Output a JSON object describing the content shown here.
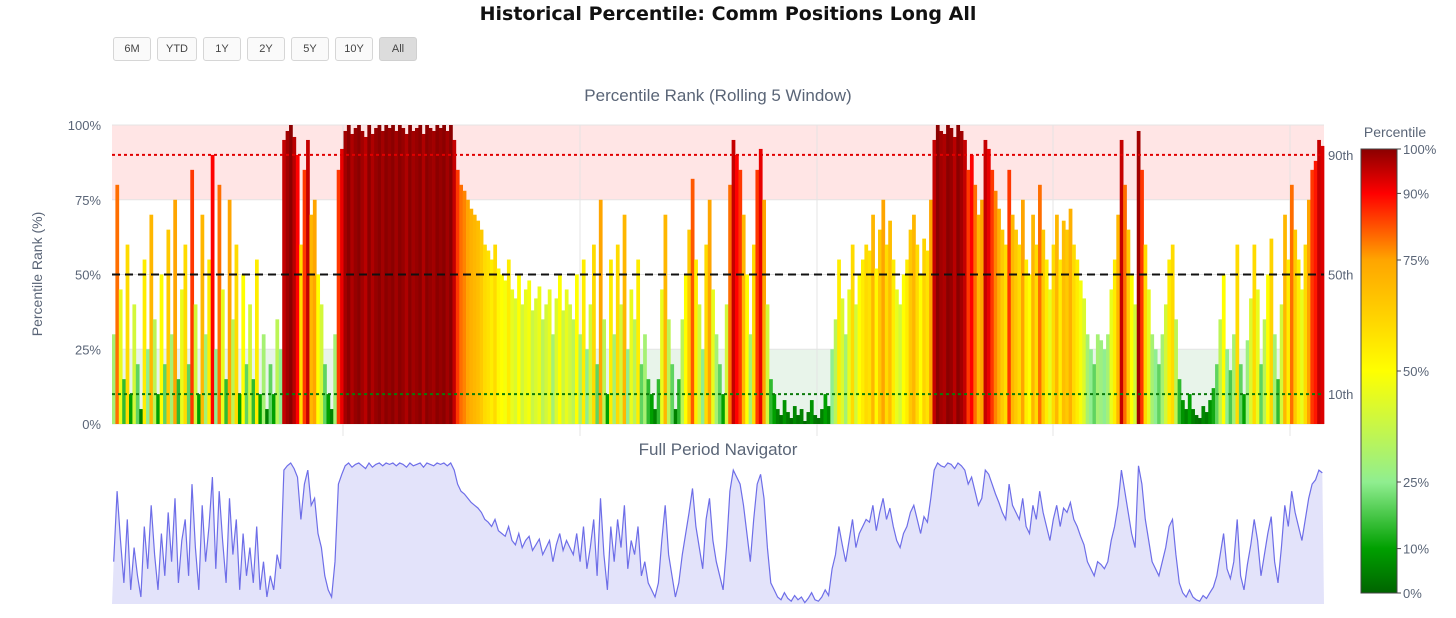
{
  "title": "Historical Percentile: Comm Positions Long All",
  "range_buttons": [
    "6M",
    "YTD",
    "1Y",
    "2Y",
    "5Y",
    "10Y",
    "All"
  ],
  "active_range": "All",
  "colors": {
    "high_zone": "#ffe5e5",
    "low_zone": "#e8f4ea",
    "line_90": "#e00000",
    "line_50": "#111111",
    "line_10": "#0b7a0b",
    "navigator_line": "#6e6ee8",
    "navigator_fill": "#e3e3fa"
  },
  "colorscale": [
    [
      0.0,
      "#006400"
    ],
    [
      0.1,
      "#00a000"
    ],
    [
      0.25,
      "#90ee90"
    ],
    [
      0.5,
      "#ffff00"
    ],
    [
      0.75,
      "#ffa500"
    ],
    [
      0.9,
      "#ff0000"
    ],
    [
      1.0,
      "#8b0000"
    ]
  ],
  "chart_data": {
    "type": "bar",
    "subplot_title": "Percentile Rank (Rolling 5 Window)",
    "navigator_title": "Full Period Navigator",
    "ylabel": "Percentile Rank (%)",
    "ylim": [
      0,
      100
    ],
    "yticks": [
      "0%",
      "25%",
      "50%",
      "75%",
      "100%"
    ],
    "reference_lines": [
      {
        "value": 90,
        "label": "90th",
        "style": "dotted"
      },
      {
        "value": 50,
        "label": "50th",
        "style": "dashed"
      },
      {
        "value": 10,
        "label": "10th",
        "style": "dotted"
      }
    ],
    "shaded_zones": [
      {
        "from": 75,
        "to": 100,
        "kind": "high"
      },
      {
        "from": 0,
        "to": 25,
        "kind": "low"
      }
    ],
    "colorbar": {
      "title": "Percentile",
      "ticks": [
        "0%",
        "10%",
        "25%",
        "50%",
        "75%",
        "90%",
        "100%"
      ]
    },
    "values": [
      30,
      80,
      45,
      15,
      60,
      10,
      40,
      20,
      5,
      55,
      25,
      70,
      35,
      10,
      50,
      20,
      65,
      30,
      75,
      15,
      45,
      60,
      20,
      85,
      40,
      10,
      70,
      30,
      55,
      90,
      25,
      80,
      45,
      15,
      75,
      35,
      60,
      10,
      50,
      20,
      40,
      15,
      55,
      10,
      30,
      5,
      20,
      10,
      35,
      25,
      95,
      98,
      100,
      96,
      90,
      60,
      85,
      95,
      70,
      75,
      50,
      40,
      20,
      10,
      5,
      30,
      85,
      92,
      98,
      100,
      97,
      99,
      100,
      98,
      96,
      100,
      97,
      99,
      100,
      98,
      100,
      99,
      100,
      98,
      100,
      99,
      97,
      100,
      98,
      99,
      100,
      97,
      100,
      99,
      98,
      100,
      99,
      100,
      98,
      100,
      95,
      85,
      80,
      78,
      75,
      72,
      70,
      68,
      65,
      60,
      58,
      55,
      60,
      52,
      50,
      48,
      55,
      45,
      42,
      50,
      40,
      45,
      48,
      38,
      42,
      46,
      35,
      40,
      45,
      30,
      42,
      50,
      38,
      45,
      40,
      35,
      50,
      30,
      55,
      25,
      40,
      60,
      20,
      75,
      35,
      10,
      55,
      30,
      60,
      40,
      70,
      25,
      45,
      35,
      55,
      20,
      30,
      15,
      10,
      5,
      15,
      45,
      70,
      35,
      20,
      5,
      15,
      35,
      50,
      65,
      82,
      55,
      40,
      25,
      60,
      75,
      45,
      30,
      20,
      10,
      40,
      80,
      95,
      90,
      85,
      70,
      50,
      30,
      60,
      85,
      92,
      75,
      40,
      15,
      10,
      5,
      3,
      8,
      4,
      2,
      6,
      3,
      5,
      1,
      4,
      8,
      3,
      2,
      5,
      10,
      6,
      25,
      35,
      55,
      42,
      30,
      45,
      60,
      40,
      50,
      55,
      60,
      58,
      70,
      52,
      65,
      75,
      60,
      68,
      55,
      45,
      40,
      50,
      55,
      65,
      70,
      60,
      50,
      62,
      58,
      75,
      95,
      100,
      98,
      97,
      100,
      99,
      96,
      100,
      98,
      95,
      85,
      90,
      80,
      70,
      75,
      95,
      92,
      85,
      78,
      72,
      65,
      60,
      85,
      70,
      65,
      60,
      75,
      55,
      50,
      70,
      60,
      80,
      65,
      55,
      45,
      60,
      70,
      55,
      68,
      65,
      72,
      60,
      55,
      48,
      42,
      30,
      25,
      20,
      30,
      28,
      25,
      30,
      45,
      55,
      70,
      95,
      80,
      65,
      50,
      40,
      98,
      85,
      60,
      45,
      30,
      25,
      20,
      30,
      40,
      55,
      60,
      35,
      15,
      8,
      5,
      10,
      5,
      3,
      2,
      6,
      4,
      8,
      12,
      20,
      35,
      50,
      25,
      18,
      30,
      60,
      20,
      10,
      28,
      42,
      60,
      45,
      20,
      35,
      50,
      62,
      30,
      15,
      40,
      70,
      55,
      80,
      65,
      55,
      45,
      60,
      75,
      85,
      88,
      95,
      93
    ]
  }
}
